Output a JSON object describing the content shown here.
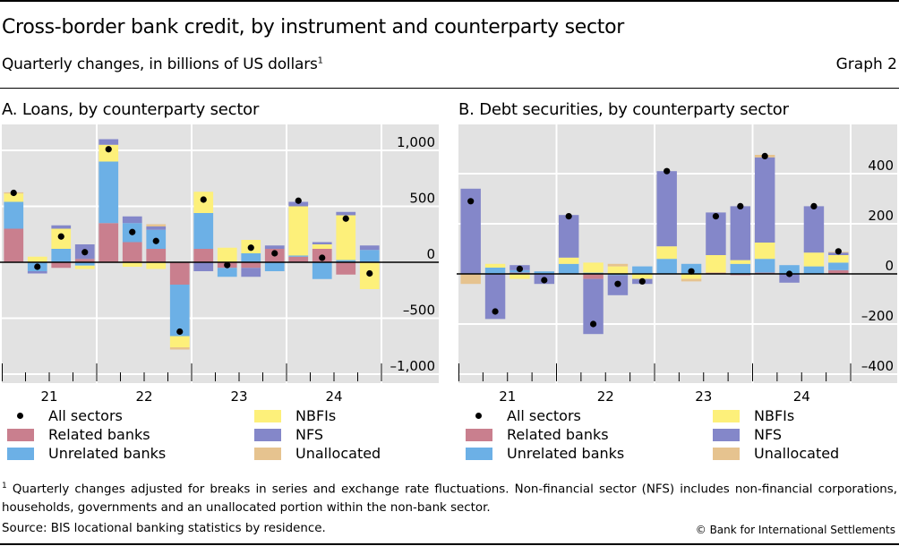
{
  "header": {
    "title": "Cross-border bank credit, by instrument and counterparty sector",
    "subtitle": "Quarterly changes, in billions of US dollars",
    "subtitle_footnote_mark": "1",
    "graph_number": "Graph 2"
  },
  "colors": {
    "Related banks": "#c97f8e",
    "Unrelated banks": "#6cb0e6",
    "NBFIs": "#fdf07a",
    "NFS": "#8487c9",
    "Unallocated": "#e6c38f",
    "All sectors": "#000000",
    "plot_background": "#e2e2e2",
    "gridline": "#ffffff"
  },
  "legend": {
    "items": [
      {
        "label": "All sectors",
        "type": "dot"
      },
      {
        "label": "Related banks",
        "type": "swatch"
      },
      {
        "label": "Unrelated banks",
        "type": "swatch"
      },
      {
        "label": "NBFIs",
        "type": "swatch"
      },
      {
        "label": "NFS",
        "type": "swatch"
      },
      {
        "label": "Unallocated",
        "type": "swatch"
      }
    ]
  },
  "chart_data": [
    {
      "type": "bar",
      "stacked": true,
      "title": "A. Loans, by counterparty sector",
      "xlabel": "",
      "ylabel": "",
      "x_tick_labels": [
        "21",
        "22",
        "23",
        "24"
      ],
      "categories": [
        "2021Q1",
        "2021Q2",
        "2021Q3",
        "2021Q4",
        "2022Q1",
        "2022Q2",
        "2022Q3",
        "2022Q4",
        "2023Q1",
        "2023Q2",
        "2023Q3",
        "2023Q4",
        "2024Q1",
        "2024Q2",
        "2024Q3",
        "2024Q4"
      ],
      "ylim": [
        -1000,
        1100
      ],
      "y_ticks": [
        1000,
        500,
        0,
        -500,
        -1000
      ],
      "y_tick_labels": [
        "1,000",
        "500",
        "0",
        "–500",
        "–1,000"
      ],
      "y_axis_position": "right",
      "grid": true,
      "series": [
        {
          "name": "Related banks",
          "values": [
            300,
            0,
            -50,
            30,
            350,
            180,
            120,
            -200,
            120,
            -50,
            -50,
            120,
            50,
            120,
            -110,
            0
          ]
        },
        {
          "name": "Unrelated banks",
          "values": [
            240,
            -80,
            120,
            -30,
            550,
            170,
            170,
            -460,
            320,
            -80,
            80,
            -80,
            10,
            -150,
            20,
            110
          ]
        },
        {
          "name": "NBFIs",
          "values": [
            75,
            50,
            180,
            -30,
            150,
            -40,
            -60,
            -100,
            190,
            130,
            120,
            0,
            440,
            40,
            400,
            -240
          ]
        },
        {
          "name": "NFS",
          "values": [
            0,
            -20,
            30,
            130,
            50,
            60,
            30,
            0,
            -80,
            0,
            -80,
            30,
            40,
            20,
            30,
            40
          ]
        },
        {
          "name": "Unallocated",
          "values": [
            10,
            0,
            0,
            0,
            0,
            0,
            20,
            -20,
            0,
            0,
            0,
            0,
            0,
            0,
            0,
            0
          ]
        }
      ],
      "dots": {
        "name": "All sectors",
        "values": [
          620,
          -40,
          230,
          90,
          1010,
          270,
          190,
          -620,
          560,
          -25,
          130,
          80,
          550,
          40,
          390,
          -100
        ]
      }
    },
    {
      "type": "bar",
      "stacked": true,
      "title": "B. Debt securities, by counterparty sector",
      "xlabel": "",
      "ylabel": "",
      "x_tick_labels": [
        "21",
        "22",
        "23",
        "24"
      ],
      "categories": [
        "2021Q1",
        "2021Q2",
        "2021Q3",
        "2021Q4",
        "2022Q1",
        "2022Q2",
        "2022Q3",
        "2022Q4",
        "2023Q1",
        "2023Q2",
        "2023Q3",
        "2023Q4",
        "2024Q1",
        "2024Q2",
        "2024Q3",
        "2024Q4"
      ],
      "ylim": [
        -400,
        500
      ],
      "y_ticks": [
        400,
        200,
        0,
        -200,
        -400
      ],
      "y_tick_labels": [
        "400",
        "200",
        "0",
        "–200",
        "–400"
      ],
      "y_axis_position": "right",
      "grid": true,
      "series": [
        {
          "name": "Related banks",
          "values": [
            0,
            0,
            5,
            0,
            0,
            -20,
            0,
            0,
            0,
            0,
            5,
            -5,
            5,
            0,
            0,
            15
          ]
        },
        {
          "name": "Unrelated banks",
          "values": [
            0,
            25,
            10,
            10,
            40,
            5,
            -5,
            30,
            60,
            40,
            0,
            40,
            55,
            35,
            30,
            30
          ]
        },
        {
          "name": "NBFIs",
          "values": [
            0,
            15,
            -20,
            0,
            25,
            40,
            30,
            -20,
            50,
            -20,
            70,
            15,
            65,
            0,
            55,
            30
          ]
        },
        {
          "name": "NFS",
          "values": [
            340,
            -180,
            20,
            -40,
            170,
            -220,
            -80,
            -20,
            300,
            0,
            170,
            215,
            340,
            -35,
            185,
            10
          ]
        },
        {
          "name": "Unallocated",
          "values": [
            -40,
            0,
            0,
            0,
            0,
            0,
            10,
            0,
            0,
            -10,
            0,
            0,
            10,
            0,
            0,
            3
          ]
        }
      ],
      "dots": {
        "name": "All sectors",
        "values": [
          290,
          -150,
          20,
          -25,
          230,
          -200,
          -40,
          -30,
          410,
          10,
          230,
          270,
          470,
          0,
          270,
          90
        ]
      }
    }
  ],
  "footer": {
    "footnote_mark": "1",
    "footnote": "Quarterly changes adjusted for breaks in series and exchange rate fluctuations. Non-financial sector (NFS) includes non-financial corporations, households, governments and an unallocated portion within the non-bank sector.",
    "source": "Source: BIS locational banking statistics by residence.",
    "copyright": "© Bank for International Settlements"
  }
}
